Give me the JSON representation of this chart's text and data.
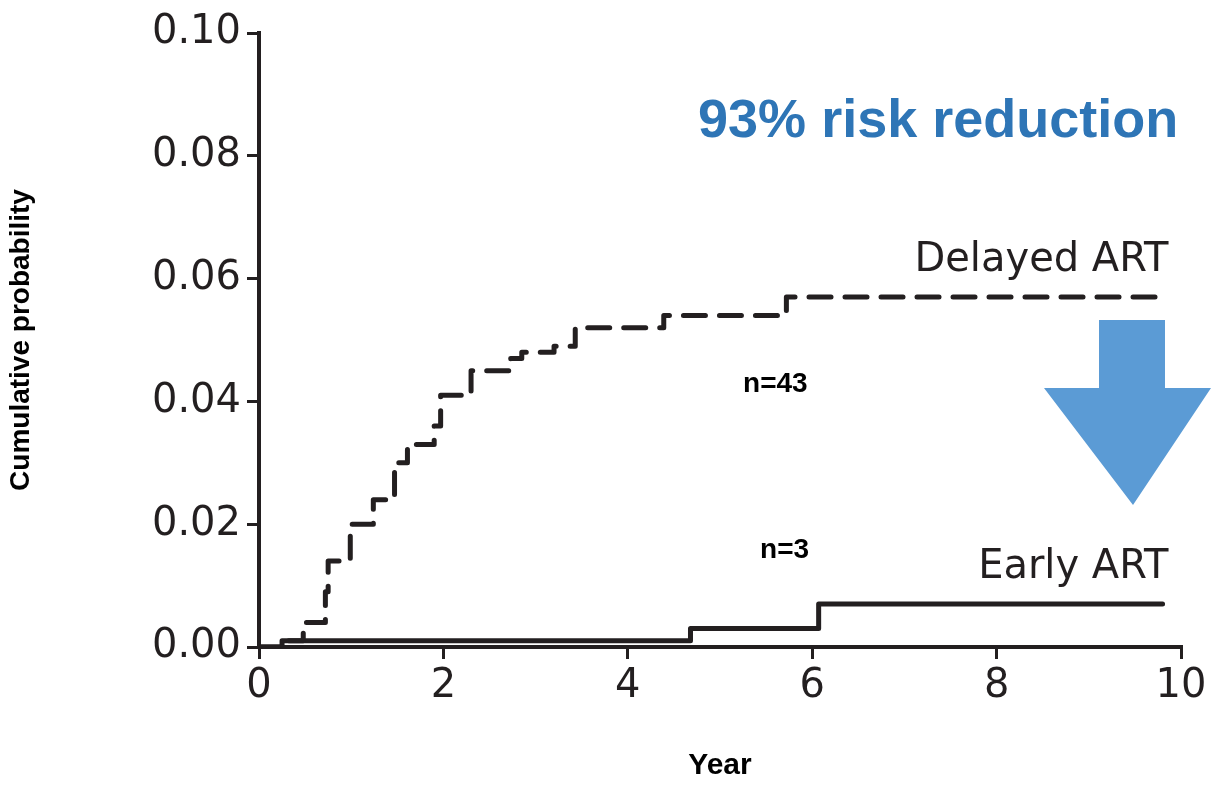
{
  "chart_data": {
    "type": "step",
    "xlabel": "Year",
    "ylabel": "Cumulative probability",
    "xlim": [
      0,
      10
    ],
    "xticks": [
      0,
      2,
      4,
      6,
      8,
      10
    ],
    "ylim": [
      0,
      0.1
    ],
    "yticks": [
      {
        "value": 0,
        "label": "0.00"
      },
      {
        "value": 0.02,
        "label": "0.02"
      },
      {
        "value": 0.04,
        "label": "0.04"
      },
      {
        "value": 0.06,
        "label": "0.06"
      },
      {
        "value": 0.08,
        "label": "0.08"
      },
      {
        "value": 0.1,
        "label": "0.10"
      }
    ],
    "grid": false,
    "legend": false,
    "marker": "none",
    "series": [
      {
        "name": "Delayed ART",
        "color": "#231f20",
        "line_style": "dashed",
        "x": [
          0,
          0.25,
          0.48,
          0.72,
          0.75,
          0.99,
          1.24,
          1.47,
          1.61,
          1.9,
          1.97,
          2.3,
          2.73,
          2.85,
          3.2,
          3.43,
          4.39,
          5.72,
          9.8
        ],
        "values": [
          0,
          0.001,
          0.004,
          0.009,
          0.014,
          0.02,
          0.024,
          0.03,
          0.033,
          0.036,
          0.041,
          0.045,
          0.047,
          0.048,
          0.049,
          0.052,
          0.054,
          0.057,
          0.057
        ]
      },
      {
        "name": "Early ART",
        "color": "#231f20",
        "line_style": "solid",
        "x": [
          0,
          0.25,
          4.68,
          6.07,
          9.8
        ],
        "values": [
          0,
          0.001,
          0.003,
          0.007,
          0.007
        ]
      }
    ],
    "annotations": [
      "93% risk reduction",
      "n=43",
      "n=3"
    ]
  }
}
